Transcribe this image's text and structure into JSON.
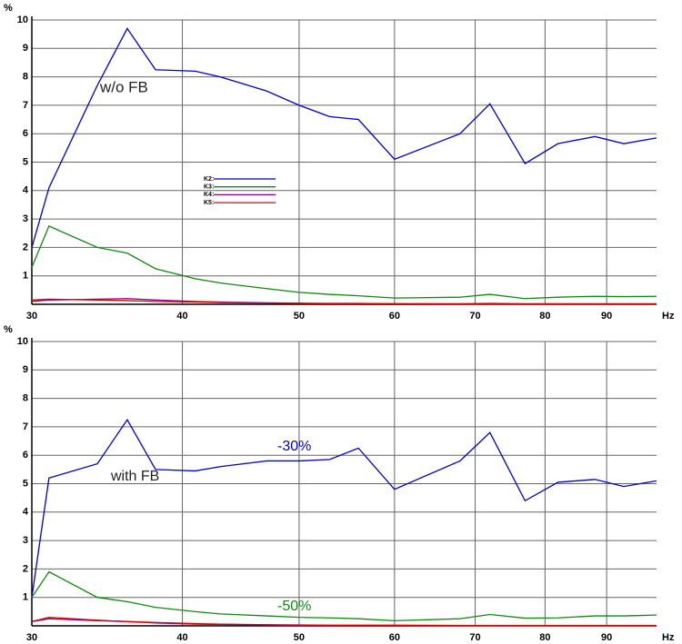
{
  "chart_data": [
    {
      "type": "line",
      "y_unit": "%",
      "x_unit": "Hz",
      "log_x": true,
      "grid": true,
      "legend": true,
      "xlim": [
        30,
        99
      ],
      "xticks": [
        30,
        40,
        50,
        60,
        70,
        80,
        90
      ],
      "ylim": [
        0,
        10
      ],
      "yticks": [
        1,
        2,
        3,
        4,
        5,
        6,
        7,
        8,
        9,
        10
      ],
      "x": [
        30,
        31,
        34,
        36,
        38,
        41,
        43,
        47,
        50,
        53,
        56,
        60,
        68,
        72,
        77,
        82,
        88,
        93,
        99
      ],
      "series": [
        {
          "name": "K2:",
          "color": "#0000cc",
          "values": [
            2.0,
            4.1,
            7.7,
            9.7,
            8.25,
            8.2,
            8.0,
            7.5,
            7.0,
            6.6,
            6.5,
            5.1,
            6.0,
            7.05,
            4.95,
            5.65,
            5.9,
            5.65,
            5.85
          ]
        },
        {
          "name": "K3:",
          "color": "#118811",
          "values": [
            1.3,
            2.75,
            2.0,
            1.8,
            1.25,
            0.9,
            0.75,
            0.55,
            0.42,
            0.35,
            0.3,
            0.22,
            0.25,
            0.35,
            0.2,
            0.25,
            0.28,
            0.27,
            0.28
          ]
        },
        {
          "name": "K4:",
          "color": "#880088",
          "values": [
            0.1,
            0.15,
            0.18,
            0.2,
            0.15,
            0.1,
            0.08,
            0.05,
            0.04,
            0.03,
            0.03,
            0.02,
            0.02,
            0.03,
            0.02,
            0.02,
            0.02,
            0.02,
            0.02
          ]
        },
        {
          "name": "K5:",
          "color": "#dd0000",
          "values": [
            0.15,
            0.18,
            0.15,
            0.13,
            0.1,
            0.08,
            0.06,
            0.04,
            0.03,
            0.02,
            0.02,
            0.02,
            0.01,
            0.01,
            0.01,
            0.01,
            0.01,
            0.01,
            0.01
          ]
        }
      ],
      "annotations": [
        {
          "text": "w/o FB",
          "color": "#222222"
        }
      ]
    },
    {
      "type": "line",
      "y_unit": "%",
      "x_unit": "Hz",
      "log_x": true,
      "grid": true,
      "legend": false,
      "xlim": [
        30,
        99
      ],
      "xticks": [
        30,
        40,
        50,
        60,
        70,
        80,
        90
      ],
      "ylim": [
        0,
        10
      ],
      "yticks": [
        1,
        2,
        3,
        4,
        5,
        6,
        7,
        8,
        9,
        10
      ],
      "x": [
        30,
        31,
        34,
        36,
        38,
        41,
        43,
        47,
        50,
        53,
        56,
        60,
        68,
        72,
        77,
        82,
        88,
        93,
        99
      ],
      "series": [
        {
          "color": "#0000cc",
          "values": [
            1.0,
            5.2,
            5.7,
            7.25,
            5.5,
            5.45,
            5.6,
            5.8,
            5.8,
            5.85,
            6.25,
            4.8,
            5.8,
            6.8,
            4.4,
            5.05,
            5.15,
            4.9,
            5.1
          ]
        },
        {
          "color": "#118811",
          "values": [
            1.0,
            1.9,
            1.0,
            0.85,
            0.65,
            0.5,
            0.42,
            0.35,
            0.3,
            0.28,
            0.25,
            0.18,
            0.25,
            0.4,
            0.27,
            0.28,
            0.35,
            0.35,
            0.38
          ]
        },
        {
          "color": "#880088",
          "values": [
            0.15,
            0.25,
            0.18,
            0.15,
            0.1,
            0.06,
            0.05,
            0.03,
            0.02,
            0.02,
            0.02,
            0.02,
            0.01,
            0.01,
            0.01,
            0.01,
            0.01,
            0.01,
            0.01
          ]
        },
        {
          "color": "#dd0000",
          "values": [
            0.15,
            0.3,
            0.2,
            0.15,
            0.12,
            0.08,
            0.06,
            0.04,
            0.03,
            0.02,
            0.02,
            0.02,
            0.01,
            0.01,
            0.01,
            0.01,
            0.01,
            0.01,
            0.01
          ]
        }
      ],
      "annotations": [
        {
          "text": "with FB",
          "color": "#222222"
        },
        {
          "text": "-30%",
          "color": "#0000cc"
        },
        {
          "text": "-50%",
          "color": "#118811"
        }
      ]
    }
  ]
}
